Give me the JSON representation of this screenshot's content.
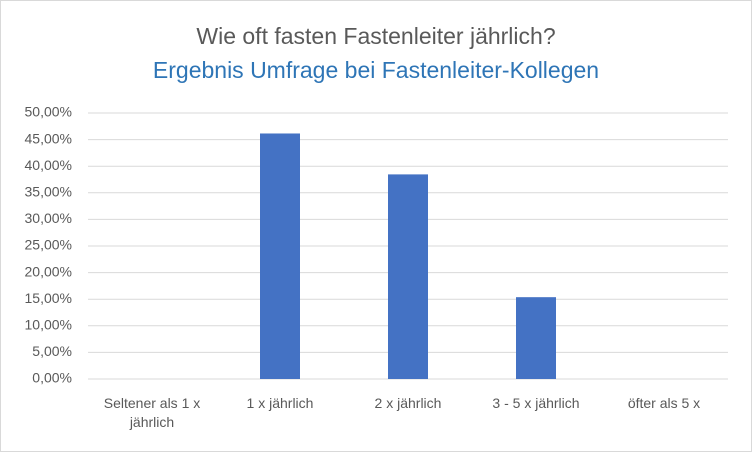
{
  "chart_data": {
    "type": "bar",
    "title": "Wie oft fasten Fastenleiter jährlich?",
    "subtitle": "Ergebnis Umfrage bei Fastenleiter-Kollegen",
    "categories": [
      "Seltener als 1 x jährlich",
      "1 x jährlich",
      "2 x jährlich",
      "3 - 5 x jährlich",
      "öfter als 5 x"
    ],
    "values": [
      0,
      46.15,
      38.46,
      15.38,
      0
    ],
    "color": "#4472c4",
    "ylim": [
      0,
      50
    ],
    "yticks": [
      {
        "value": 0,
        "label": "0,00%"
      },
      {
        "value": 5,
        "label": "5,00%"
      },
      {
        "value": 10,
        "label": "10,00%"
      },
      {
        "value": 15,
        "label": "15,00%"
      },
      {
        "value": 20,
        "label": "20,00%"
      },
      {
        "value": 25,
        "label": "25,00%"
      },
      {
        "value": 30,
        "label": "30,00%"
      },
      {
        "value": 35,
        "label": "35,00%"
      },
      {
        "value": 40,
        "label": "40,00%"
      },
      {
        "value": 45,
        "label": "45,00%"
      },
      {
        "value": 50,
        "label": "50,00%"
      }
    ],
    "grid": true
  }
}
